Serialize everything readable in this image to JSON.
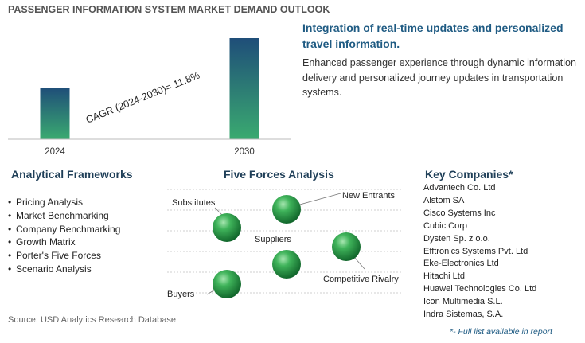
{
  "title": "PASSENGER INFORMATION SYSTEM MARKET DEMAND OUTLOOK",
  "chart_data": {
    "type": "bar",
    "categories": [
      "2024",
      "2030"
    ],
    "values": [
      1.0,
      1.96
    ],
    "annotation": "CAGR (2024-2030)=  11.8%",
    "bar_colors": [
      "#1f4e79",
      "#3aaa70"
    ]
  },
  "highlight": {
    "title": "Integration of real-time updates and personalized travel information.",
    "body": "Enhanced passenger experience through dynamic information delivery and personalized journey updates in transportation systems."
  },
  "frameworks": {
    "title": "Analytical Frameworks",
    "items": [
      "Pricing Analysis",
      "Market Benchmarking",
      "Company Benchmarking",
      "Growth Matrix",
      "Porter's Five Forces",
      "Scenario Analysis"
    ]
  },
  "five_forces": {
    "title": "Five Forces Analysis",
    "labels": {
      "new_entrants": "New Entrants",
      "substitutes": "Substitutes",
      "suppliers": "Suppliers",
      "competitive_rivalry": "Competitive Rivalry",
      "buyers": "Buyers"
    },
    "sphere_color": "#2e9e4a"
  },
  "companies": {
    "title": "Key Companies*",
    "items": [
      "Advantech Co. Ltd",
      "Alstom SA",
      "Cisco Systems Inc",
      "Cubic Corp",
      "Dysten Sp. z o.o.",
      "Efftronics Systems Pvt. Ltd",
      "Eke-Electronics Ltd",
      "Hitachi Ltd",
      "Huawei Technologies Co. Ltd",
      "Icon Multimedia S.L.",
      "Indra Sistemas, S.A."
    ],
    "note": "*- Full list available in report"
  },
  "source": "Source: USD Analytics Research Database"
}
